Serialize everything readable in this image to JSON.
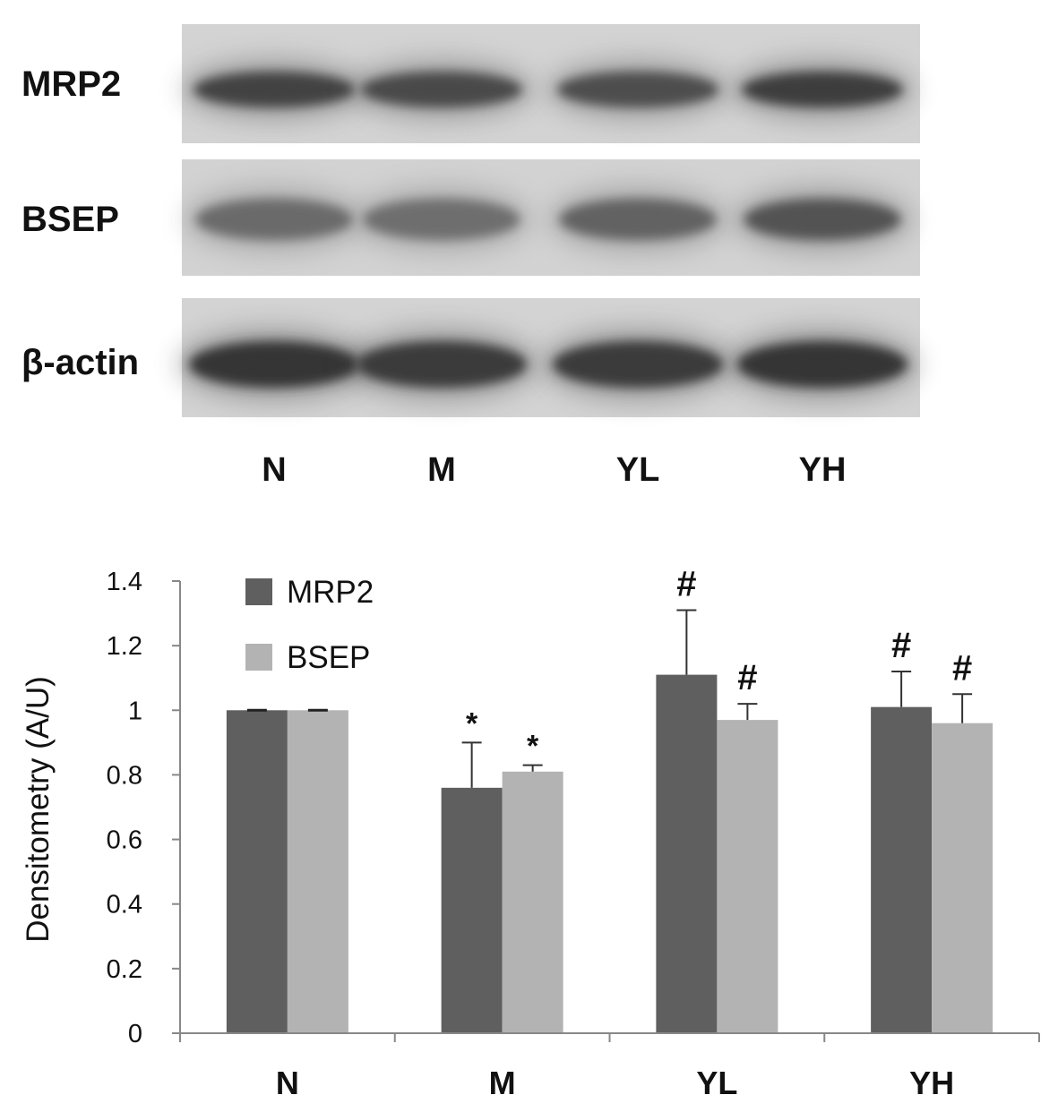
{
  "blot": {
    "rows": [
      {
        "label": "MRP2",
        "intensity": [
          0.82,
          0.78,
          0.76,
          0.84
        ]
      },
      {
        "label": "BSEP",
        "intensity": [
          0.62,
          0.6,
          0.66,
          0.74
        ]
      },
      {
        "label": "β-actin",
        "intensity": [
          0.88,
          0.86,
          0.86,
          0.88
        ]
      }
    ],
    "lanes": [
      "N",
      "M",
      "YL",
      "YH"
    ]
  },
  "chart_data": {
    "type": "bar",
    "categories": [
      "N",
      "M",
      "YL",
      "YH"
    ],
    "ylabel": "Densitometry (A/U)",
    "xlabel": "",
    "ylim": [
      0,
      1.4
    ],
    "yticks": [
      "0",
      "0.2",
      "0.4",
      "0.6",
      "0.8",
      "1",
      "1.2",
      "1.4"
    ],
    "grid": false,
    "legend_position": "top-left",
    "series": [
      {
        "name": "MRP2",
        "color": "#5f5f5f",
        "values": [
          1.0,
          0.76,
          1.11,
          1.01
        ],
        "errors": [
          0.0,
          0.14,
          0.2,
          0.11
        ],
        "markers": [
          "",
          "*",
          "#",
          "#"
        ]
      },
      {
        "name": "BSEP",
        "color": "#b3b3b3",
        "values": [
          1.0,
          0.81,
          0.97,
          0.96
        ],
        "errors": [
          0.0,
          0.02,
          0.05,
          0.09
        ],
        "markers": [
          "",
          "*",
          "#",
          "#"
        ]
      }
    ]
  }
}
